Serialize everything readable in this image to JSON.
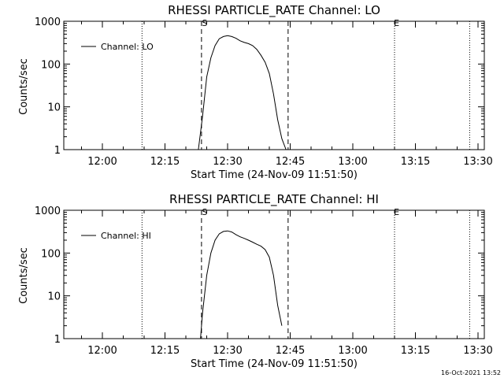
{
  "footer": "16-Oct-2021 13:52",
  "chart_data": [
    {
      "type": "line",
      "title": "RHESSI PARTICLE_RATE Channel: LO",
      "xlabel": "Start Time (24-Nov-09 11:51:50)",
      "ylabel": "Counts/sec",
      "yscale": "log",
      "ylim": [
        1,
        1000
      ],
      "y_ticks": [
        "1",
        "10",
        "100",
        "1000"
      ],
      "x_tick_labels": [
        "12:00",
        "12:15",
        "12:30",
        "12:45",
        "13:00",
        "13:15",
        "13:30"
      ],
      "legend": {
        "position": "top-left",
        "entries": [
          "Channel: LO"
        ]
      },
      "markers": {
        "start": "S",
        "end": "E"
      },
      "series": [
        {
          "name": "Channel: LO",
          "x": [
            "12:23:00",
            "12:24:00",
            "12:25:00",
            "12:26:00",
            "12:27:00",
            "12:28:00",
            "12:29:00",
            "12:30:00",
            "12:31:00",
            "12:32:00",
            "12:33:00",
            "12:34:00",
            "12:35:00",
            "12:36:00",
            "12:37:00",
            "12:38:00",
            "12:39:00",
            "12:40:00",
            "12:41:00",
            "12:42:00",
            "12:43:00",
            "12:44:00"
          ],
          "y": [
            1,
            6,
            50,
            140,
            270,
            390,
            440,
            460,
            440,
            400,
            350,
            320,
            300,
            270,
            220,
            160,
            110,
            60,
            20,
            5,
            1.8,
            1
          ]
        }
      ]
    },
    {
      "type": "line",
      "title": "RHESSI PARTICLE_RATE Channel: HI",
      "xlabel": "Start Time (24-Nov-09 11:51:50)",
      "ylabel": "Counts/sec",
      "yscale": "log",
      "ylim": [
        1,
        1000
      ],
      "y_ticks": [
        "1",
        "10",
        "100",
        "1000"
      ],
      "x_tick_labels": [
        "12:00",
        "12:15",
        "12:30",
        "12:45",
        "13:00",
        "13:15",
        "13:30"
      ],
      "legend": {
        "position": "top-left",
        "entries": [
          "Channel: HI"
        ]
      },
      "markers": {
        "start": "S",
        "end": "E"
      },
      "series": [
        {
          "name": "Channel: HI",
          "x": [
            "12:23:30",
            "12:24:00",
            "12:25:00",
            "12:26:00",
            "12:27:00",
            "12:28:00",
            "12:29:00",
            "12:30:00",
            "12:31:00",
            "12:32:00",
            "12:33:00",
            "12:34:00",
            "12:35:00",
            "12:36:00",
            "12:37:00",
            "12:38:00",
            "12:39:00",
            "12:40:00",
            "12:41:00",
            "12:42:00",
            "12:43:00"
          ],
          "y": [
            1,
            4,
            30,
            100,
            200,
            280,
            320,
            330,
            310,
            270,
            240,
            220,
            200,
            180,
            160,
            145,
            120,
            80,
            30,
            6,
            2
          ]
        }
      ]
    }
  ]
}
